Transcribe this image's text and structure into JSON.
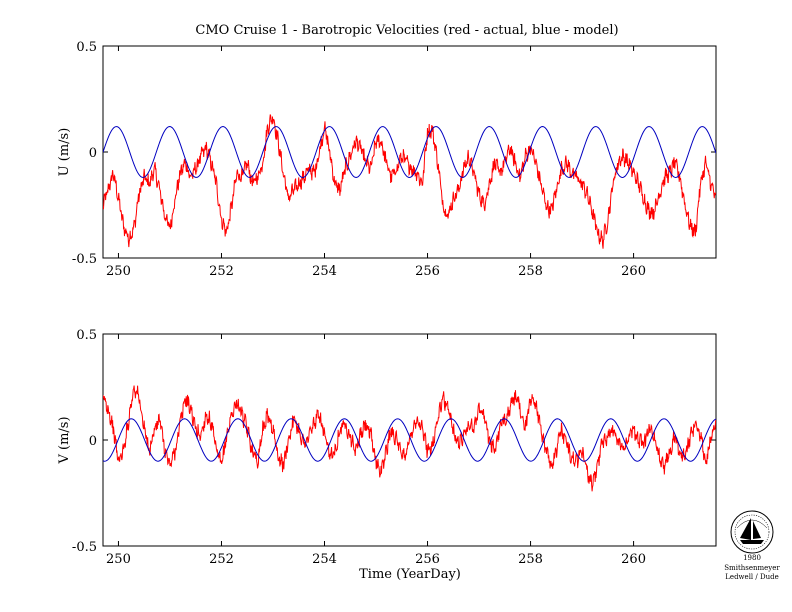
{
  "figure": {
    "title": "CMO Cruise 1 - Barotropic Velocities (red - actual, blue - model)",
    "xlabel": "Time (YearDay)"
  },
  "colors": {
    "actual": "#ff0000",
    "model": "#0000c0",
    "axes": "#000000",
    "background": "#ffffff"
  },
  "logo": {
    "caption_line1": "1980",
    "caption_line2": "Smithsenmeyer",
    "caption_line3": "Ledwell / Dude",
    "icon": "sailing-ship-seal-icon"
  },
  "chart_data": [
    {
      "type": "line",
      "ylabel": "U (m/s)",
      "xlim": [
        249.7,
        261.6
      ],
      "ylim": [
        -0.5,
        0.5
      ],
      "xticks": [
        250,
        252,
        254,
        256,
        258,
        260
      ],
      "xtick_labels": [
        "250",
        "252",
        "254",
        "256",
        "258",
        "260"
      ],
      "yticks": [
        -0.5,
        0,
        0.5
      ],
      "ytick_labels": [
        "-0.5",
        "0",
        "0.5"
      ],
      "grid": false,
      "series": [
        {
          "name": "actual",
          "color": "#ff0000",
          "x": [
            249.7,
            249.8,
            249.9,
            250.0,
            250.1,
            250.2,
            250.3,
            250.4,
            250.5,
            250.6,
            250.7,
            250.8,
            250.9,
            251.0,
            251.1,
            251.2,
            251.3,
            251.4,
            251.5,
            251.6,
            251.7,
            251.8,
            251.9,
            252.0,
            252.1,
            252.2,
            252.3,
            252.4,
            252.5,
            252.6,
            252.7,
            252.8,
            252.9,
            253.0,
            253.1,
            253.2,
            253.3,
            253.4,
            253.5,
            253.6,
            253.7,
            253.8,
            253.9,
            254.0,
            254.1,
            254.2,
            254.3,
            254.4,
            254.5,
            254.6,
            254.7,
            254.8,
            254.9,
            255.0,
            255.1,
            255.2,
            255.3,
            255.4,
            255.5,
            255.6,
            255.7,
            255.8,
            255.9,
            256.0,
            256.1,
            256.2,
            256.3,
            256.4,
            256.5,
            256.6,
            256.7,
            256.8,
            256.9,
            257.0,
            257.1,
            257.2,
            257.3,
            257.4,
            257.5,
            257.6,
            257.7,
            257.8,
            257.9,
            258.0,
            258.1,
            258.2,
            258.3,
            258.4,
            258.5,
            258.6,
            258.7,
            258.8,
            258.9,
            259.0,
            259.1,
            259.2,
            259.3,
            259.4,
            259.5,
            259.6,
            259.7,
            259.8,
            259.9,
            260.0,
            260.1,
            260.2,
            260.3,
            260.4,
            260.5,
            260.6,
            260.7,
            260.8,
            260.9,
            261.0,
            261.1,
            261.2,
            261.3,
            261.4,
            261.5,
            261.6
          ],
          "values": [
            -0.25,
            -0.18,
            -0.1,
            -0.22,
            -0.35,
            -0.41,
            -0.36,
            -0.2,
            -0.12,
            -0.15,
            -0.08,
            -0.18,
            -0.3,
            -0.36,
            -0.22,
            -0.1,
            -0.05,
            -0.12,
            -0.08,
            -0.02,
            0.02,
            -0.05,
            -0.15,
            -0.32,
            -0.38,
            -0.25,
            -0.1,
            -0.12,
            -0.05,
            -0.15,
            -0.12,
            -0.05,
            0.12,
            0.17,
            0.05,
            -0.1,
            -0.22,
            -0.18,
            -0.15,
            -0.12,
            -0.08,
            -0.1,
            0.0,
            0.12,
            0.0,
            -0.15,
            -0.18,
            -0.08,
            -0.02,
            0.05,
            0.02,
            -0.05,
            -0.08,
            0.05,
            0.05,
            -0.05,
            -0.12,
            -0.08,
            -0.02,
            -0.05,
            -0.08,
            -0.1,
            -0.15,
            0.1,
            0.1,
            -0.05,
            -0.25,
            -0.3,
            -0.22,
            -0.18,
            -0.08,
            -0.02,
            -0.1,
            -0.2,
            -0.25,
            -0.15,
            -0.05,
            -0.1,
            -0.05,
            0.02,
            -0.05,
            -0.12,
            -0.02,
            0.02,
            -0.05,
            -0.15,
            -0.25,
            -0.28,
            -0.18,
            -0.08,
            -0.05,
            -0.1,
            -0.12,
            -0.15,
            -0.2,
            -0.28,
            -0.38,
            -0.42,
            -0.32,
            -0.15,
            -0.05,
            -0.02,
            -0.05,
            -0.1,
            -0.15,
            -0.22,
            -0.28,
            -0.28,
            -0.2,
            -0.12,
            -0.1,
            -0.05,
            -0.12,
            -0.25,
            -0.35,
            -0.38,
            -0.15,
            -0.05,
            -0.15,
            -0.22
          ]
        },
        {
          "name": "model",
          "color": "#0000c0",
          "x_start": 249.7,
          "x_end": 261.6,
          "amplitude": 0.12,
          "period_days": 1.034,
          "phase_peak_yearday": 249.96
        }
      ]
    },
    {
      "type": "line",
      "ylabel": "V (m/s)",
      "xlim": [
        249.7,
        261.6
      ],
      "ylim": [
        -0.5,
        0.5
      ],
      "xticks": [
        250,
        252,
        254,
        256,
        258,
        260
      ],
      "xtick_labels": [
        "250",
        "252",
        "254",
        "256",
        "258",
        "260"
      ],
      "yticks": [
        -0.5,
        0,
        0.5
      ],
      "ytick_labels": [
        "-0.5",
        "0",
        "0.5"
      ],
      "grid": false,
      "series": [
        {
          "name": "actual",
          "color": "#ff0000",
          "x": [
            249.7,
            249.8,
            249.9,
            250.0,
            250.1,
            250.2,
            250.3,
            250.4,
            250.5,
            250.6,
            250.7,
            250.8,
            250.9,
            251.0,
            251.1,
            251.2,
            251.3,
            251.4,
            251.5,
            251.6,
            251.7,
            251.8,
            251.9,
            252.0,
            252.1,
            252.2,
            252.3,
            252.4,
            252.5,
            252.6,
            252.7,
            252.8,
            252.9,
            253.0,
            253.1,
            253.2,
            253.3,
            253.4,
            253.5,
            253.6,
            253.7,
            253.8,
            253.9,
            254.0,
            254.1,
            254.2,
            254.3,
            254.4,
            254.5,
            254.6,
            254.7,
            254.8,
            254.9,
            255.0,
            255.1,
            255.2,
            255.3,
            255.4,
            255.5,
            255.6,
            255.7,
            255.8,
            255.9,
            256.0,
            256.1,
            256.2,
            256.3,
            256.4,
            256.5,
            256.6,
            256.7,
            256.8,
            256.9,
            257.0,
            257.1,
            257.2,
            257.3,
            257.4,
            257.5,
            257.6,
            257.7,
            257.8,
            257.9,
            258.0,
            258.1,
            258.2,
            258.3,
            258.4,
            258.5,
            258.6,
            258.7,
            258.8,
            258.9,
            259.0,
            259.1,
            259.2,
            259.3,
            259.4,
            259.5,
            259.6,
            259.7,
            259.8,
            259.9,
            260.0,
            260.1,
            260.2,
            260.3,
            260.4,
            260.5,
            260.6,
            260.7,
            260.8,
            260.9,
            261.0,
            261.1,
            261.2,
            261.3,
            261.4,
            261.5,
            261.6
          ],
          "values": [
            0.2,
            0.15,
            0.05,
            -0.1,
            -0.05,
            0.1,
            0.25,
            0.2,
            0.05,
            -0.05,
            0.05,
            0.1,
            -0.05,
            -0.12,
            -0.05,
            0.08,
            0.2,
            0.15,
            0.05,
            0.02,
            0.12,
            0.08,
            -0.05,
            -0.12,
            0.02,
            0.12,
            0.18,
            0.12,
            0.05,
            -0.05,
            -0.1,
            0.05,
            0.12,
            0.05,
            -0.08,
            -0.12,
            0.0,
            0.1,
            0.05,
            -0.02,
            0.02,
            0.08,
            0.12,
            0.02,
            -0.08,
            -0.05,
            0.05,
            0.08,
            0.02,
            -0.05,
            0.02,
            0.08,
            0.02,
            -0.1,
            -0.15,
            -0.05,
            0.05,
            0.0,
            -0.08,
            -0.05,
            0.05,
            0.1,
            0.05,
            -0.05,
            -0.02,
            0.1,
            0.2,
            0.15,
            0.05,
            -0.02,
            0.02,
            0.08,
            0.05,
            0.15,
            0.12,
            0.0,
            -0.05,
            0.05,
            0.1,
            0.15,
            0.2,
            0.15,
            0.05,
            0.2,
            0.18,
            0.05,
            -0.05,
            -0.12,
            -0.05,
            0.05,
            -0.02,
            -0.08,
            -0.1,
            -0.05,
            -0.15,
            -0.22,
            -0.12,
            0.0,
            0.02,
            0.05,
            0.0,
            -0.05,
            0.02,
            0.05,
            0.0,
            -0.02,
            0.05,
            0.02,
            -0.08,
            -0.12,
            -0.05,
            0.02,
            -0.05,
            -0.08,
            0.02,
            0.08,
            0.02,
            -0.1,
            0.0,
            0.08
          ]
        },
        {
          "name": "model",
          "color": "#0000c0",
          "x_start": 249.7,
          "x_end": 261.6,
          "amplitude": 0.1,
          "period_days": 1.034,
          "phase_peak_yearday": 250.25
        }
      ]
    }
  ]
}
